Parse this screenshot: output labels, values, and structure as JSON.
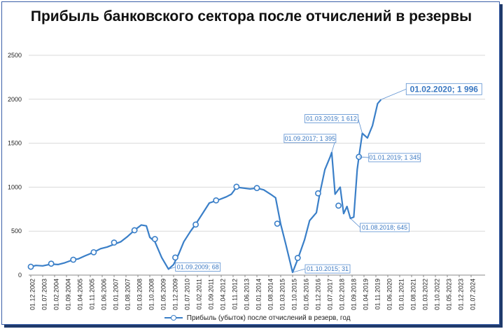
{
  "chart_data": {
    "type": "line",
    "title": "Прибыль банковского сектора после отчислений в резервы",
    "xlabel": "",
    "ylabel": "",
    "ylim": [
      0,
      2500
    ],
    "yticks": [
      "0",
      "500",
      "1000",
      "1500",
      "2000",
      "2500"
    ],
    "grid": "horizontal",
    "legend_placement": "bottom",
    "series_color": "#3a7fc8",
    "x_tick_labels": [
      "01.12.2002",
      "01.07.2003",
      "01.02.2004",
      "01.09.2004",
      "01.04.2005",
      "01.11.2005",
      "01.06.2006",
      "01.01.2007",
      "01.08.2007",
      "01.03.2008",
      "01.10.2008",
      "01.05.2009",
      "01.12.2009",
      "01.07.2010",
      "01.02.2011",
      "01.09.2011",
      "01.04.2012",
      "01.11.2012",
      "01.06.2013",
      "01.01.2014",
      "01.08.2014",
      "01.03.2015",
      "01.10.2015",
      "01.05.2016",
      "01.12.2016",
      "01.07.2017",
      "01.02.2018",
      "01.09.2018",
      "01.04.2019",
      "01.11.2019",
      "01.06.2020",
      "01.01.2021",
      "01.08.2021",
      "01.03.2022",
      "01.10.2022",
      "01.05.2023",
      "01.12.2023",
      "01.07.2024"
    ],
    "series": [
      {
        "name": "Прибыль (убыток) после отчислений в резерв, год",
        "points": [
          [
            "2002-12",
            95
          ],
          [
            "2003-03",
            110
          ],
          [
            "2003-07",
            105
          ],
          [
            "2003-12",
            125
          ],
          [
            "2004-04",
            120
          ],
          [
            "2004-08",
            140
          ],
          [
            "2005-01",
            175
          ],
          [
            "2005-04",
            185
          ],
          [
            "2005-08",
            220
          ],
          [
            "2006-01",
            260
          ],
          [
            "2006-05",
            300
          ],
          [
            "2006-09",
            320
          ],
          [
            "2007-01",
            350
          ],
          [
            "2007-05",
            380
          ],
          [
            "2007-09",
            440
          ],
          [
            "2008-01",
            510
          ],
          [
            "2008-05",
            570
          ],
          [
            "2008-08",
            560
          ],
          [
            "2008-10",
            430
          ],
          [
            "2009-01",
            380
          ],
          [
            "2009-05",
            200
          ],
          [
            "2009-09",
            68
          ],
          [
            "2009-12",
            120
          ],
          [
            "2010-03",
            240
          ],
          [
            "2010-06",
            380
          ],
          [
            "2010-10",
            500
          ],
          [
            "2011-01",
            580
          ],
          [
            "2011-05",
            700
          ],
          [
            "2011-09",
            820
          ],
          [
            "2011-12",
            840
          ],
          [
            "2012-03",
            860
          ],
          [
            "2012-07",
            890
          ],
          [
            "2012-10",
            920
          ],
          [
            "2013-01",
            1000
          ],
          [
            "2013-05",
            990
          ],
          [
            "2013-09",
            980
          ],
          [
            "2014-01",
            990
          ],
          [
            "2014-05",
            970
          ],
          [
            "2014-09",
            920
          ],
          [
            "2014-12",
            880
          ],
          [
            "2015-03",
            580
          ],
          [
            "2015-06",
            350
          ],
          [
            "2015-10",
            31
          ],
          [
            "2016-01",
            180
          ],
          [
            "2016-05",
            400
          ],
          [
            "2016-08",
            620
          ],
          [
            "2016-12",
            710
          ],
          [
            "2017-02",
            930
          ],
          [
            "2017-05",
            1200
          ],
          [
            "2017-08",
            1340
          ],
          [
            "2017-09",
            1395
          ],
          [
            "2017-11",
            920
          ],
          [
            "2018-02",
            1000
          ],
          [
            "2018-04",
            700
          ],
          [
            "2018-06",
            780
          ],
          [
            "2018-08",
            645
          ],
          [
            "2018-10",
            660
          ],
          [
            "2018-12",
            1200
          ],
          [
            "2019-01",
            1345
          ],
          [
            "2019-03",
            1612
          ],
          [
            "2019-06",
            1560
          ],
          [
            "2019-09",
            1700
          ],
          [
            "2019-12",
            1950
          ],
          [
            "2020-02",
            1996
          ]
        ],
        "markers": [
          [
            "2002-12",
            95
          ],
          [
            "2003-12",
            130
          ],
          [
            "2005-01",
            175
          ],
          [
            "2006-01",
            260
          ],
          [
            "2007-01",
            370
          ],
          [
            "2008-01",
            510
          ],
          [
            "2009-01",
            410
          ],
          [
            "2010-01",
            200
          ],
          [
            "2011-01",
            575
          ],
          [
            "2012-01",
            850
          ],
          [
            "2013-01",
            1005
          ],
          [
            "2014-01",
            990
          ],
          [
            "2015-01",
            585
          ],
          [
            "2016-01",
            195
          ],
          [
            "2017-01",
            930
          ],
          [
            "2018-01",
            790
          ],
          [
            "2019-01",
            1345
          ]
        ]
      }
    ],
    "annotations": [
      {
        "label": "01.09.2009; 68",
        "x": "2009-09",
        "y": 68
      },
      {
        "label": "01.10.2015; 31",
        "x": "2015-10",
        "y": 31
      },
      {
        "label": "01.09.2017; 1 395",
        "x": "2017-09",
        "y": 1395
      },
      {
        "label": "01.03.2019; 1 612",
        "x": "2019-03",
        "y": 1612
      },
      {
        "label": "01.01.2019; 1 345",
        "x": "2019-01",
        "y": 1345
      },
      {
        "label": "01.08.2018; 645",
        "x": "2018-08",
        "y": 645
      },
      {
        "label": "01.02.2020; 1 996",
        "x": "2020-02",
        "y": 1996
      }
    ]
  }
}
